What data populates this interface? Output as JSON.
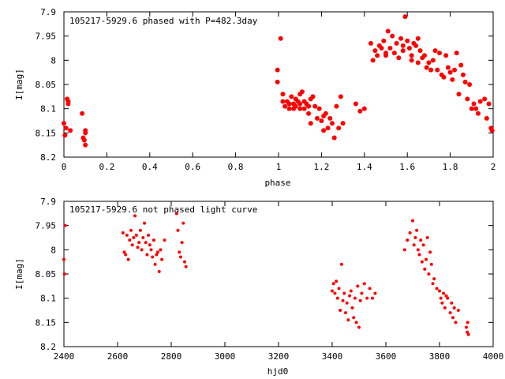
{
  "colors": {
    "points": "#ff0000",
    "axes": "#000000",
    "background": "#ffffff"
  },
  "chart_data": [
    {
      "type": "scatter",
      "marker": "dot",
      "title": "105217-5929.6 phased with P=482.3day",
      "xlabel": "phase",
      "ylabel": "I[mag]",
      "xlim": [
        0,
        2
      ],
      "ylim": [
        8.2,
        7.9
      ],
      "y_inverted": true,
      "grid": false,
      "xticks": [
        0,
        0.2,
        0.4,
        0.6,
        0.8,
        1,
        1.2,
        1.4,
        1.6,
        1.8,
        2
      ],
      "xtick_labels": [
        "0",
        "0.2",
        "0.4",
        "0.6",
        "0.8",
        "1",
        "1.2",
        "1.4",
        "1.6",
        "1.8",
        "2"
      ],
      "yticks": [
        7.9,
        7.95,
        8.0,
        8.05,
        8.1,
        8.15,
        8.2
      ],
      "ytick_labels": [
        "7.9",
        "7.95",
        "8",
        "8.05",
        "8.1",
        "8.15",
        "8.2"
      ],
      "points": [
        [
          0.0,
          8.13
        ],
        [
          0.005,
          8.155
        ],
        [
          0.01,
          8.14
        ],
        [
          0.015,
          8.08
        ],
        [
          0.02,
          8.085
        ],
        [
          0.02,
          8.09
        ],
        [
          0.03,
          8.145
        ],
        [
          0.085,
          8.11
        ],
        [
          0.09,
          8.16
        ],
        [
          0.095,
          8.165
        ],
        [
          0.1,
          8.145
        ],
        [
          0.1,
          8.15
        ],
        [
          0.1,
          8.175
        ],
        [
          0.995,
          8.02
        ],
        [
          0.995,
          8.045
        ],
        [
          1.01,
          7.955
        ],
        [
          1.02,
          8.07
        ],
        [
          1.02,
          8.085
        ],
        [
          1.03,
          8.095
        ],
        [
          1.04,
          8.085
        ],
        [
          1.05,
          8.09
        ],
        [
          1.05,
          8.1
        ],
        [
          1.06,
          8.075
        ],
        [
          1.07,
          8.09
        ],
        [
          1.07,
          8.1
        ],
        [
          1.08,
          8.08
        ],
        [
          1.08,
          8.095
        ],
        [
          1.09,
          8.085
        ],
        [
          1.1,
          8.07
        ],
        [
          1.1,
          8.09
        ],
        [
          1.1,
          8.1
        ],
        [
          1.11,
          8.065
        ],
        [
          1.12,
          8.085
        ],
        [
          1.12,
          8.1
        ],
        [
          1.13,
          8.09
        ],
        [
          1.14,
          8.11
        ],
        [
          1.14,
          8.095
        ],
        [
          1.15,
          8.08
        ],
        [
          1.15,
          8.13
        ],
        [
          1.16,
          8.075
        ],
        [
          1.17,
          8.095
        ],
        [
          1.18,
          8.12
        ],
        [
          1.19,
          8.1
        ],
        [
          1.2,
          8.125
        ],
        [
          1.21,
          8.145
        ],
        [
          1.21,
          8.115
        ],
        [
          1.22,
          8.11
        ],
        [
          1.23,
          8.14
        ],
        [
          1.24,
          8.12
        ],
        [
          1.25,
          8.13
        ],
        [
          1.26,
          8.16
        ],
        [
          1.27,
          8.095
        ],
        [
          1.28,
          8.14
        ],
        [
          1.29,
          8.075
        ],
        [
          1.3,
          8.13
        ],
        [
          1.36,
          8.09
        ],
        [
          1.38,
          8.105
        ],
        [
          1.4,
          8.1
        ],
        [
          1.43,
          7.965
        ],
        [
          1.44,
          8.0
        ],
        [
          1.45,
          7.98
        ],
        [
          1.46,
          7.99
        ],
        [
          1.47,
          7.97
        ],
        [
          1.48,
          7.975
        ],
        [
          1.49,
          7.96
        ],
        [
          1.5,
          7.99
        ],
        [
          1.5,
          7.985
        ],
        [
          1.51,
          7.94
        ],
        [
          1.52,
          7.975
        ],
        [
          1.53,
          7.95
        ],
        [
          1.54,
          7.985
        ],
        [
          1.55,
          7.965
        ],
        [
          1.56,
          7.995
        ],
        [
          1.57,
          7.955
        ],
        [
          1.58,
          7.97
        ],
        [
          1.58,
          7.98
        ],
        [
          1.59,
          7.91
        ],
        [
          1.6,
          7.96
        ],
        [
          1.61,
          7.975
        ],
        [
          1.62,
          8.0
        ],
        [
          1.62,
          7.99
        ],
        [
          1.63,
          7.965
        ],
        [
          1.64,
          7.97
        ],
        [
          1.65,
          8.005
        ],
        [
          1.65,
          7.955
        ],
        [
          1.66,
          7.98
        ],
        [
          1.67,
          7.995
        ],
        [
          1.68,
          7.99
        ],
        [
          1.69,
          8.015
        ],
        [
          1.7,
          8.005
        ],
        [
          1.71,
          8.02
        ],
        [
          1.72,
          8.0
        ],
        [
          1.73,
          7.98
        ],
        [
          1.74,
          8.02
        ],
        [
          1.75,
          7.985
        ],
        [
          1.76,
          8.03
        ],
        [
          1.77,
          8.035
        ],
        [
          1.78,
          7.99
        ],
        [
          1.79,
          8.015
        ],
        [
          1.8,
          8.025
        ],
        [
          1.81,
          8.04
        ],
        [
          1.82,
          8.02
        ],
        [
          1.83,
          7.985
        ],
        [
          1.84,
          8.07
        ],
        [
          1.85,
          8.01
        ],
        [
          1.86,
          8.03
        ],
        [
          1.87,
          8.045
        ],
        [
          1.88,
          8.08
        ],
        [
          1.89,
          8.05
        ],
        [
          1.9,
          8.1
        ],
        [
          1.91,
          8.09
        ],
        [
          1.92,
          8.1
        ],
        [
          1.93,
          8.11
        ],
        [
          1.94,
          8.085
        ],
        [
          1.96,
          8.08
        ],
        [
          1.97,
          8.12
        ],
        [
          1.98,
          8.09
        ],
        [
          1.99,
          8.14
        ],
        [
          1.995,
          8.145
        ]
      ]
    },
    {
      "type": "scatter",
      "marker": "dot",
      "title": "105217-5929.6 not phased light curve",
      "xlabel": "hjd0",
      "ylabel": "I[mag]",
      "xlim": [
        2400,
        4000
      ],
      "ylim": [
        8.2,
        7.9
      ],
      "y_inverted": true,
      "grid": false,
      "xticks": [
        2400,
        2600,
        2800,
        3000,
        3200,
        3400,
        3600,
        3800,
        4000
      ],
      "xtick_labels": [
        "2400",
        "2600",
        "2800",
        "3000",
        "3200",
        "3400",
        "3600",
        "3800",
        "4000"
      ],
      "yticks": [
        7.9,
        7.95,
        8.0,
        8.05,
        8.1,
        8.15,
        8.2
      ],
      "ytick_labels": [
        "7.9",
        "7.95",
        "8",
        "8.05",
        "8.1",
        "8.15",
        "8.2"
      ],
      "points": [
        [
          2400,
          8.02
        ],
        [
          2402,
          8.05
        ],
        [
          2405,
          7.95
        ],
        [
          2620,
          7.965
        ],
        [
          2625,
          8.005
        ],
        [
          2630,
          8.01
        ],
        [
          2635,
          7.97
        ],
        [
          2640,
          8.02
        ],
        [
          2645,
          7.98
        ],
        [
          2650,
          7.96
        ],
        [
          2655,
          7.99
        ],
        [
          2660,
          7.975
        ],
        [
          2665,
          7.93
        ],
        [
          2670,
          7.97
        ],
        [
          2675,
          7.995
        ],
        [
          2680,
          7.985
        ],
        [
          2685,
          7.96
        ],
        [
          2690,
          8.0
        ],
        [
          2695,
          7.975
        ],
        [
          2700,
          7.945
        ],
        [
          2705,
          7.985
        ],
        [
          2710,
          8.01
        ],
        [
          2715,
          7.97
        ],
        [
          2720,
          7.99
        ],
        [
          2725,
          8.0
        ],
        [
          2730,
          8.015
        ],
        [
          2735,
          7.98
        ],
        [
          2740,
          8.03
        ],
        [
          2745,
          8.01
        ],
        [
          2750,
          8.005
        ],
        [
          2755,
          8.045
        ],
        [
          2760,
          8.0
        ],
        [
          2765,
          8.02
        ],
        [
          2775,
          7.98
        ],
        [
          2820,
          7.925
        ],
        [
          2825,
          7.96
        ],
        [
          2830,
          8.005
        ],
        [
          2835,
          8.015
        ],
        [
          2840,
          7.985
        ],
        [
          2845,
          7.945
        ],
        [
          2850,
          8.025
        ],
        [
          2855,
          8.035
        ],
        [
          3400,
          8.085
        ],
        [
          3405,
          8.07
        ],
        [
          3410,
          8.09
        ],
        [
          3415,
          8.065
        ],
        [
          3420,
          8.1
        ],
        [
          3425,
          8.08
        ],
        [
          3430,
          8.125
        ],
        [
          3435,
          8.03
        ],
        [
          3440,
          8.105
        ],
        [
          3445,
          8.09
        ],
        [
          3450,
          8.13
        ],
        [
          3455,
          8.11
        ],
        [
          3460,
          8.145
        ],
        [
          3465,
          8.095
        ],
        [
          3470,
          8.085
        ],
        [
          3475,
          8.12
        ],
        [
          3480,
          8.14
        ],
        [
          3485,
          8.1
        ],
        [
          3490,
          8.15
        ],
        [
          3495,
          8.075
        ],
        [
          3500,
          8.16
        ],
        [
          3505,
          8.105
        ],
        [
          3510,
          8.09
        ],
        [
          3520,
          8.07
        ],
        [
          3530,
          8.1
        ],
        [
          3540,
          8.08
        ],
        [
          3550,
          8.1
        ],
        [
          3560,
          8.09
        ],
        [
          3670,
          8.0
        ],
        [
          3680,
          7.98
        ],
        [
          3690,
          7.965
        ],
        [
          3700,
          7.94
        ],
        [
          3705,
          7.99
        ],
        [
          3710,
          7.975
        ],
        [
          3715,
          7.96
        ],
        [
          3720,
          8.0
        ],
        [
          3725,
          8.01
        ],
        [
          3730,
          7.98
        ],
        [
          3735,
          8.025
        ],
        [
          3740,
          7.99
        ],
        [
          3745,
          8.04
        ],
        [
          3750,
          8.02
        ],
        [
          3755,
          7.975
        ],
        [
          3760,
          8.05
        ],
        [
          3765,
          8.005
        ],
        [
          3770,
          8.03
        ],
        [
          3775,
          8.07
        ],
        [
          3780,
          8.06
        ],
        [
          3790,
          8.08
        ],
        [
          3800,
          8.085
        ],
        [
          3805,
          8.1
        ],
        [
          3810,
          8.11
        ],
        [
          3815,
          8.09
        ],
        [
          3820,
          8.12
        ],
        [
          3825,
          8.095
        ],
        [
          3830,
          8.1
        ],
        [
          3840,
          8.13
        ],
        [
          3845,
          8.11
        ],
        [
          3850,
          8.14
        ],
        [
          3855,
          8.12
        ],
        [
          3860,
          8.15
        ],
        [
          3870,
          8.125
        ],
        [
          3900,
          8.16
        ],
        [
          3903,
          8.17
        ],
        [
          3905,
          8.15
        ],
        [
          3908,
          8.175
        ]
      ]
    }
  ]
}
